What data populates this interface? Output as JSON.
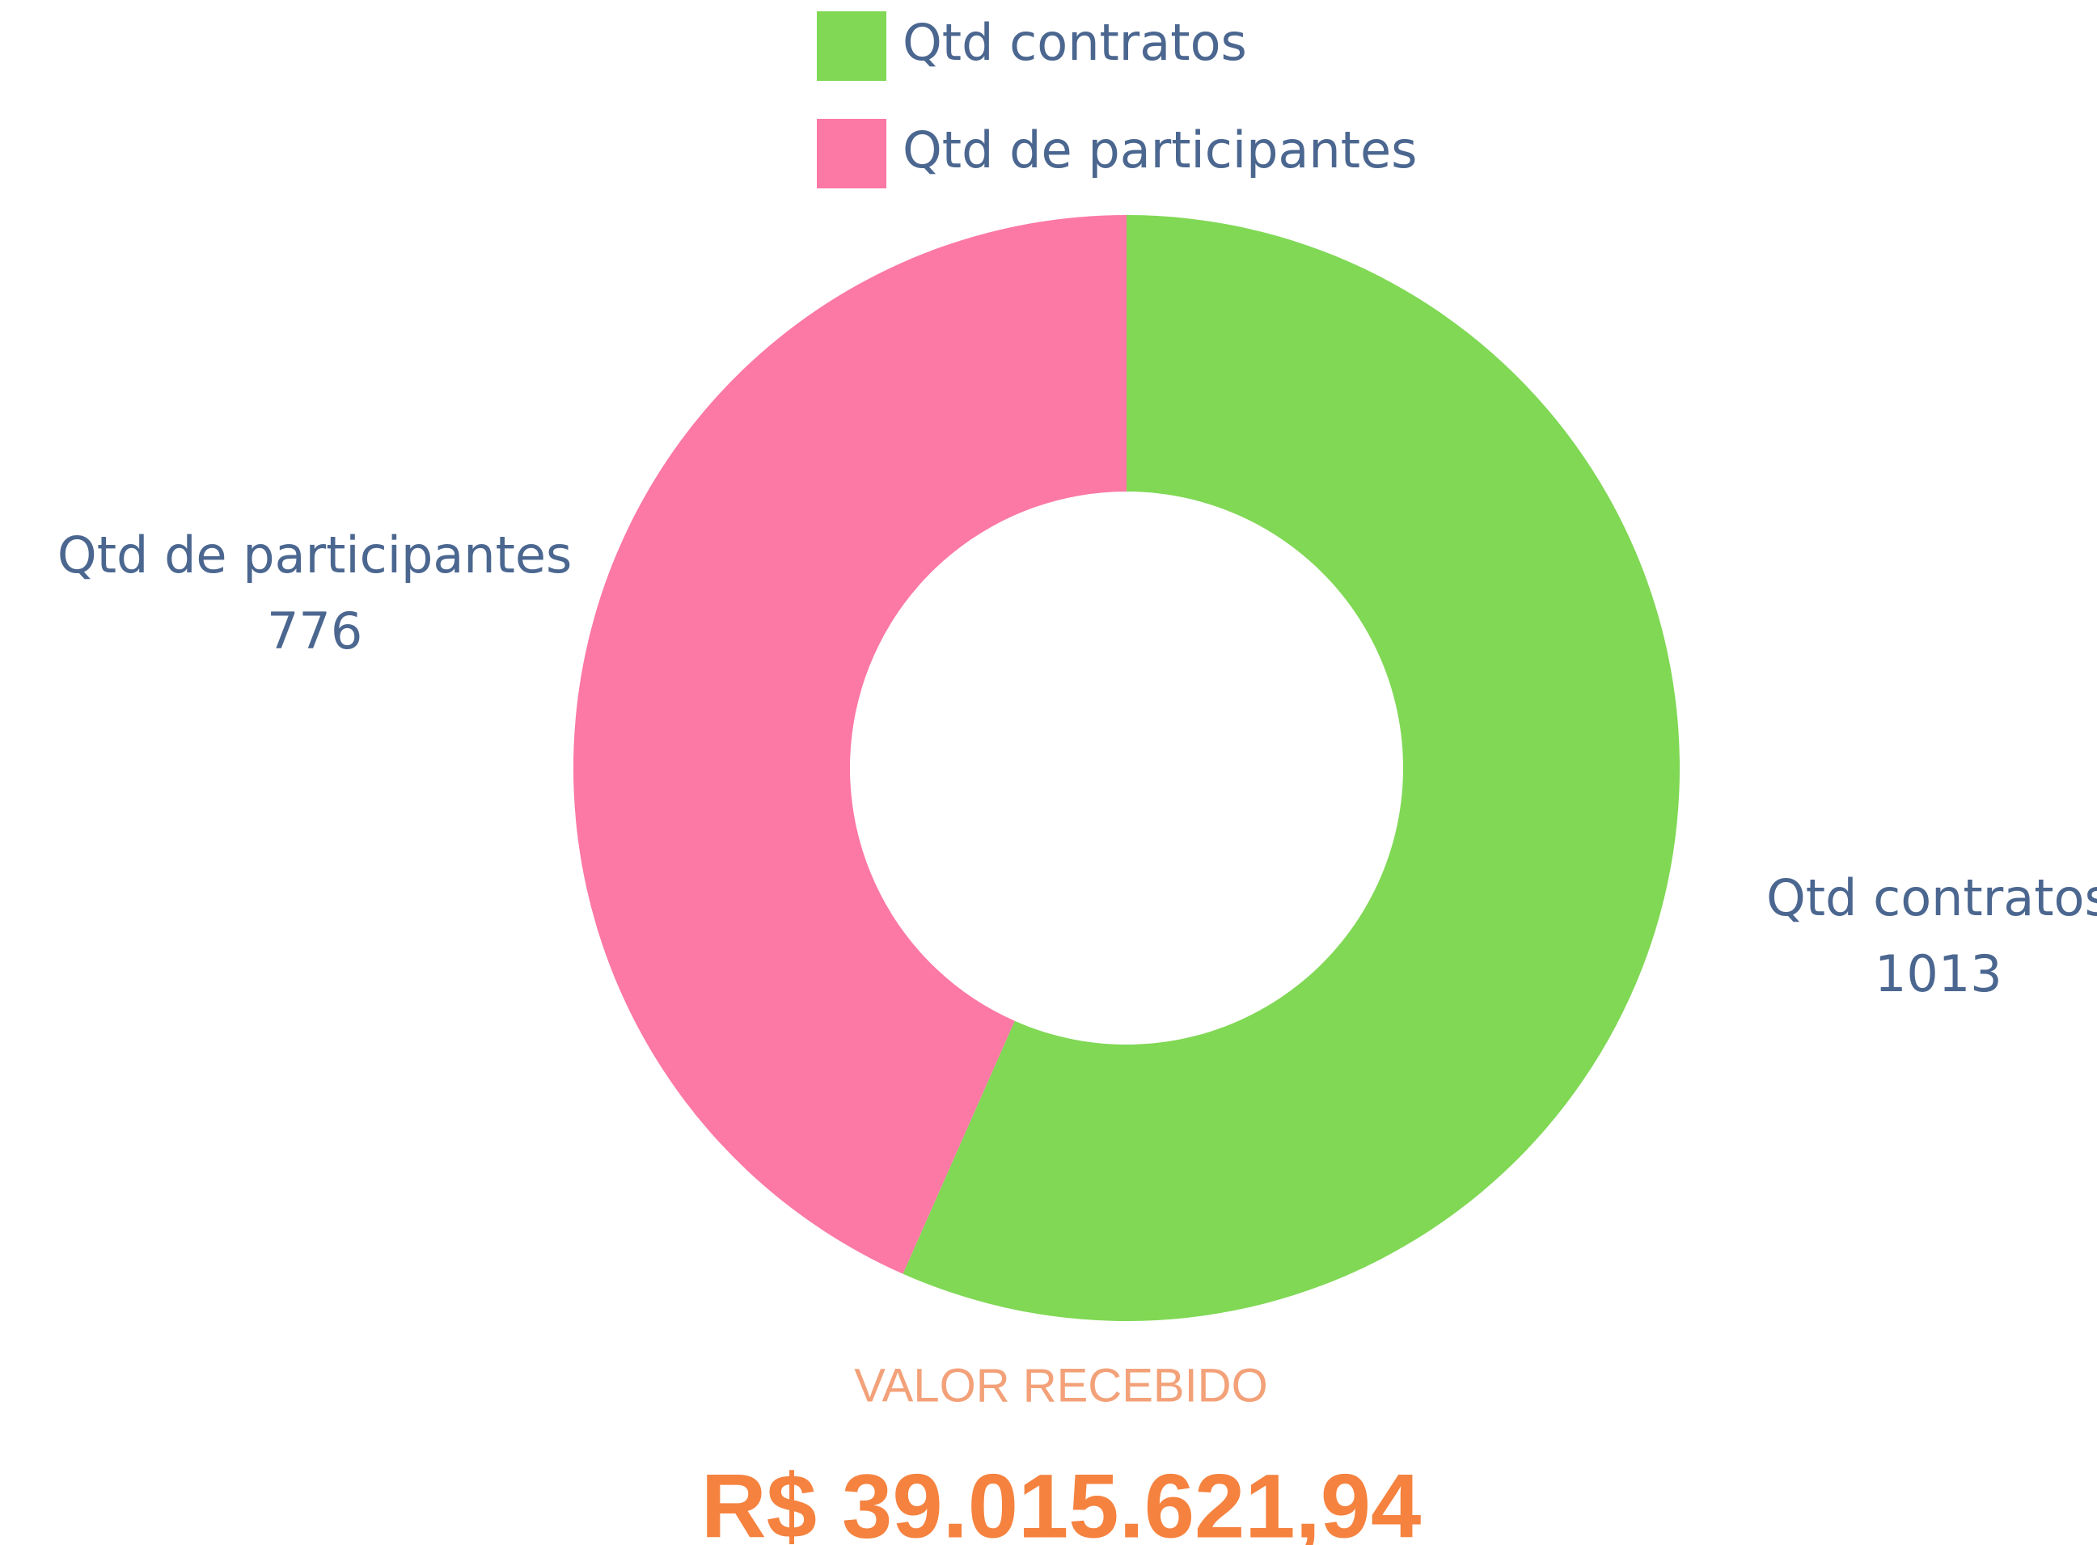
{
  "chart_data": {
    "type": "pie",
    "donut": true,
    "categories": [
      "Qtd contratos",
      "Qtd de participantes"
    ],
    "values": [
      1013,
      776
    ],
    "colors": [
      "#80d855",
      "#fc78a5"
    ],
    "legend": "top"
  },
  "summary": {
    "label": "VALOR RECEBIDO",
    "value": "R$ 39.015.621,94"
  }
}
